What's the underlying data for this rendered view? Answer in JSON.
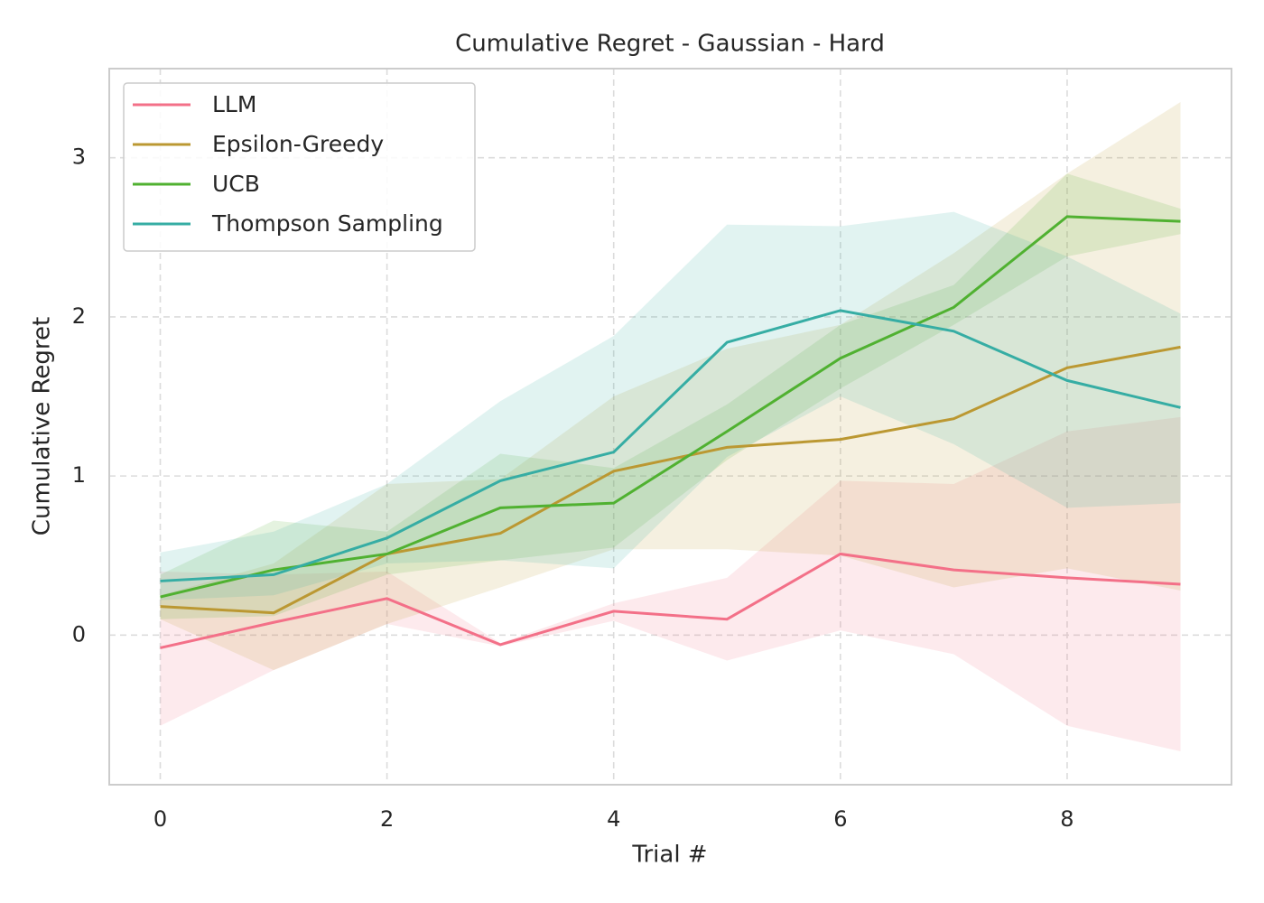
{
  "chart_data": {
    "type": "line",
    "title": "Cumulative Regret - Gaussian - Hard",
    "x_label": "Trial #",
    "y_label": "Cumulative Regret",
    "x": [
      0,
      1,
      2,
      3,
      4,
      5,
      6,
      7,
      8,
      9
    ],
    "xlim": [
      -0.45,
      9.45
    ],
    "xticks": [
      0,
      2,
      4,
      6,
      8
    ],
    "ylim": [
      -0.94,
      3.56
    ],
    "yticks": [
      0,
      1,
      2,
      3
    ],
    "grid": true,
    "legend": "upper left",
    "series": [
      {
        "name": "LLM",
        "color": "#f37088",
        "values": [
          -0.08,
          0.08,
          0.23,
          -0.06,
          0.15,
          0.1,
          0.51,
          0.41,
          0.36,
          0.32
        ],
        "lower": [
          -0.57,
          -0.22,
          0.07,
          -0.07,
          0.09,
          -0.16,
          0.03,
          -0.12,
          -0.57,
          -0.73
        ],
        "upper": [
          0.4,
          0.38,
          0.4,
          -0.05,
          0.2,
          0.36,
          0.97,
          0.95,
          1.28,
          1.37
        ]
      },
      {
        "name": "Epsilon-Greedy",
        "color": "#bb9832",
        "values": [
          0.18,
          0.14,
          0.51,
          0.64,
          1.03,
          1.18,
          1.23,
          1.36,
          1.68,
          1.81
        ],
        "lower": [
          0.1,
          -0.22,
          0.07,
          0.3,
          0.54,
          0.54,
          0.5,
          0.3,
          0.42,
          0.28
        ],
        "upper": [
          0.25,
          0.45,
          0.95,
          0.98,
          1.5,
          1.8,
          1.95,
          2.4,
          2.9,
          3.35
        ]
      },
      {
        "name": "UCB",
        "color": "#50b131",
        "values": [
          0.24,
          0.41,
          0.51,
          0.8,
          0.83,
          1.28,
          1.74,
          2.06,
          2.63,
          2.6
        ],
        "lower": [
          0.1,
          0.12,
          0.38,
          0.47,
          0.55,
          1.1,
          1.55,
          1.95,
          2.38,
          2.52
        ],
        "upper": [
          0.38,
          0.72,
          0.65,
          1.14,
          1.05,
          1.45,
          1.95,
          2.2,
          2.9,
          2.68
        ]
      },
      {
        "name": "Thompson Sampling",
        "color": "#36ada4",
        "values": [
          0.34,
          0.38,
          0.61,
          0.97,
          1.15,
          1.84,
          2.04,
          1.91,
          1.6,
          1.43
        ],
        "lower": [
          0.22,
          0.25,
          0.45,
          0.47,
          0.42,
          1.12,
          1.5,
          1.2,
          0.8,
          0.83
        ],
        "upper": [
          0.52,
          0.65,
          0.95,
          1.47,
          1.88,
          2.58,
          2.57,
          2.66,
          2.38,
          2.02
        ]
      }
    ]
  }
}
